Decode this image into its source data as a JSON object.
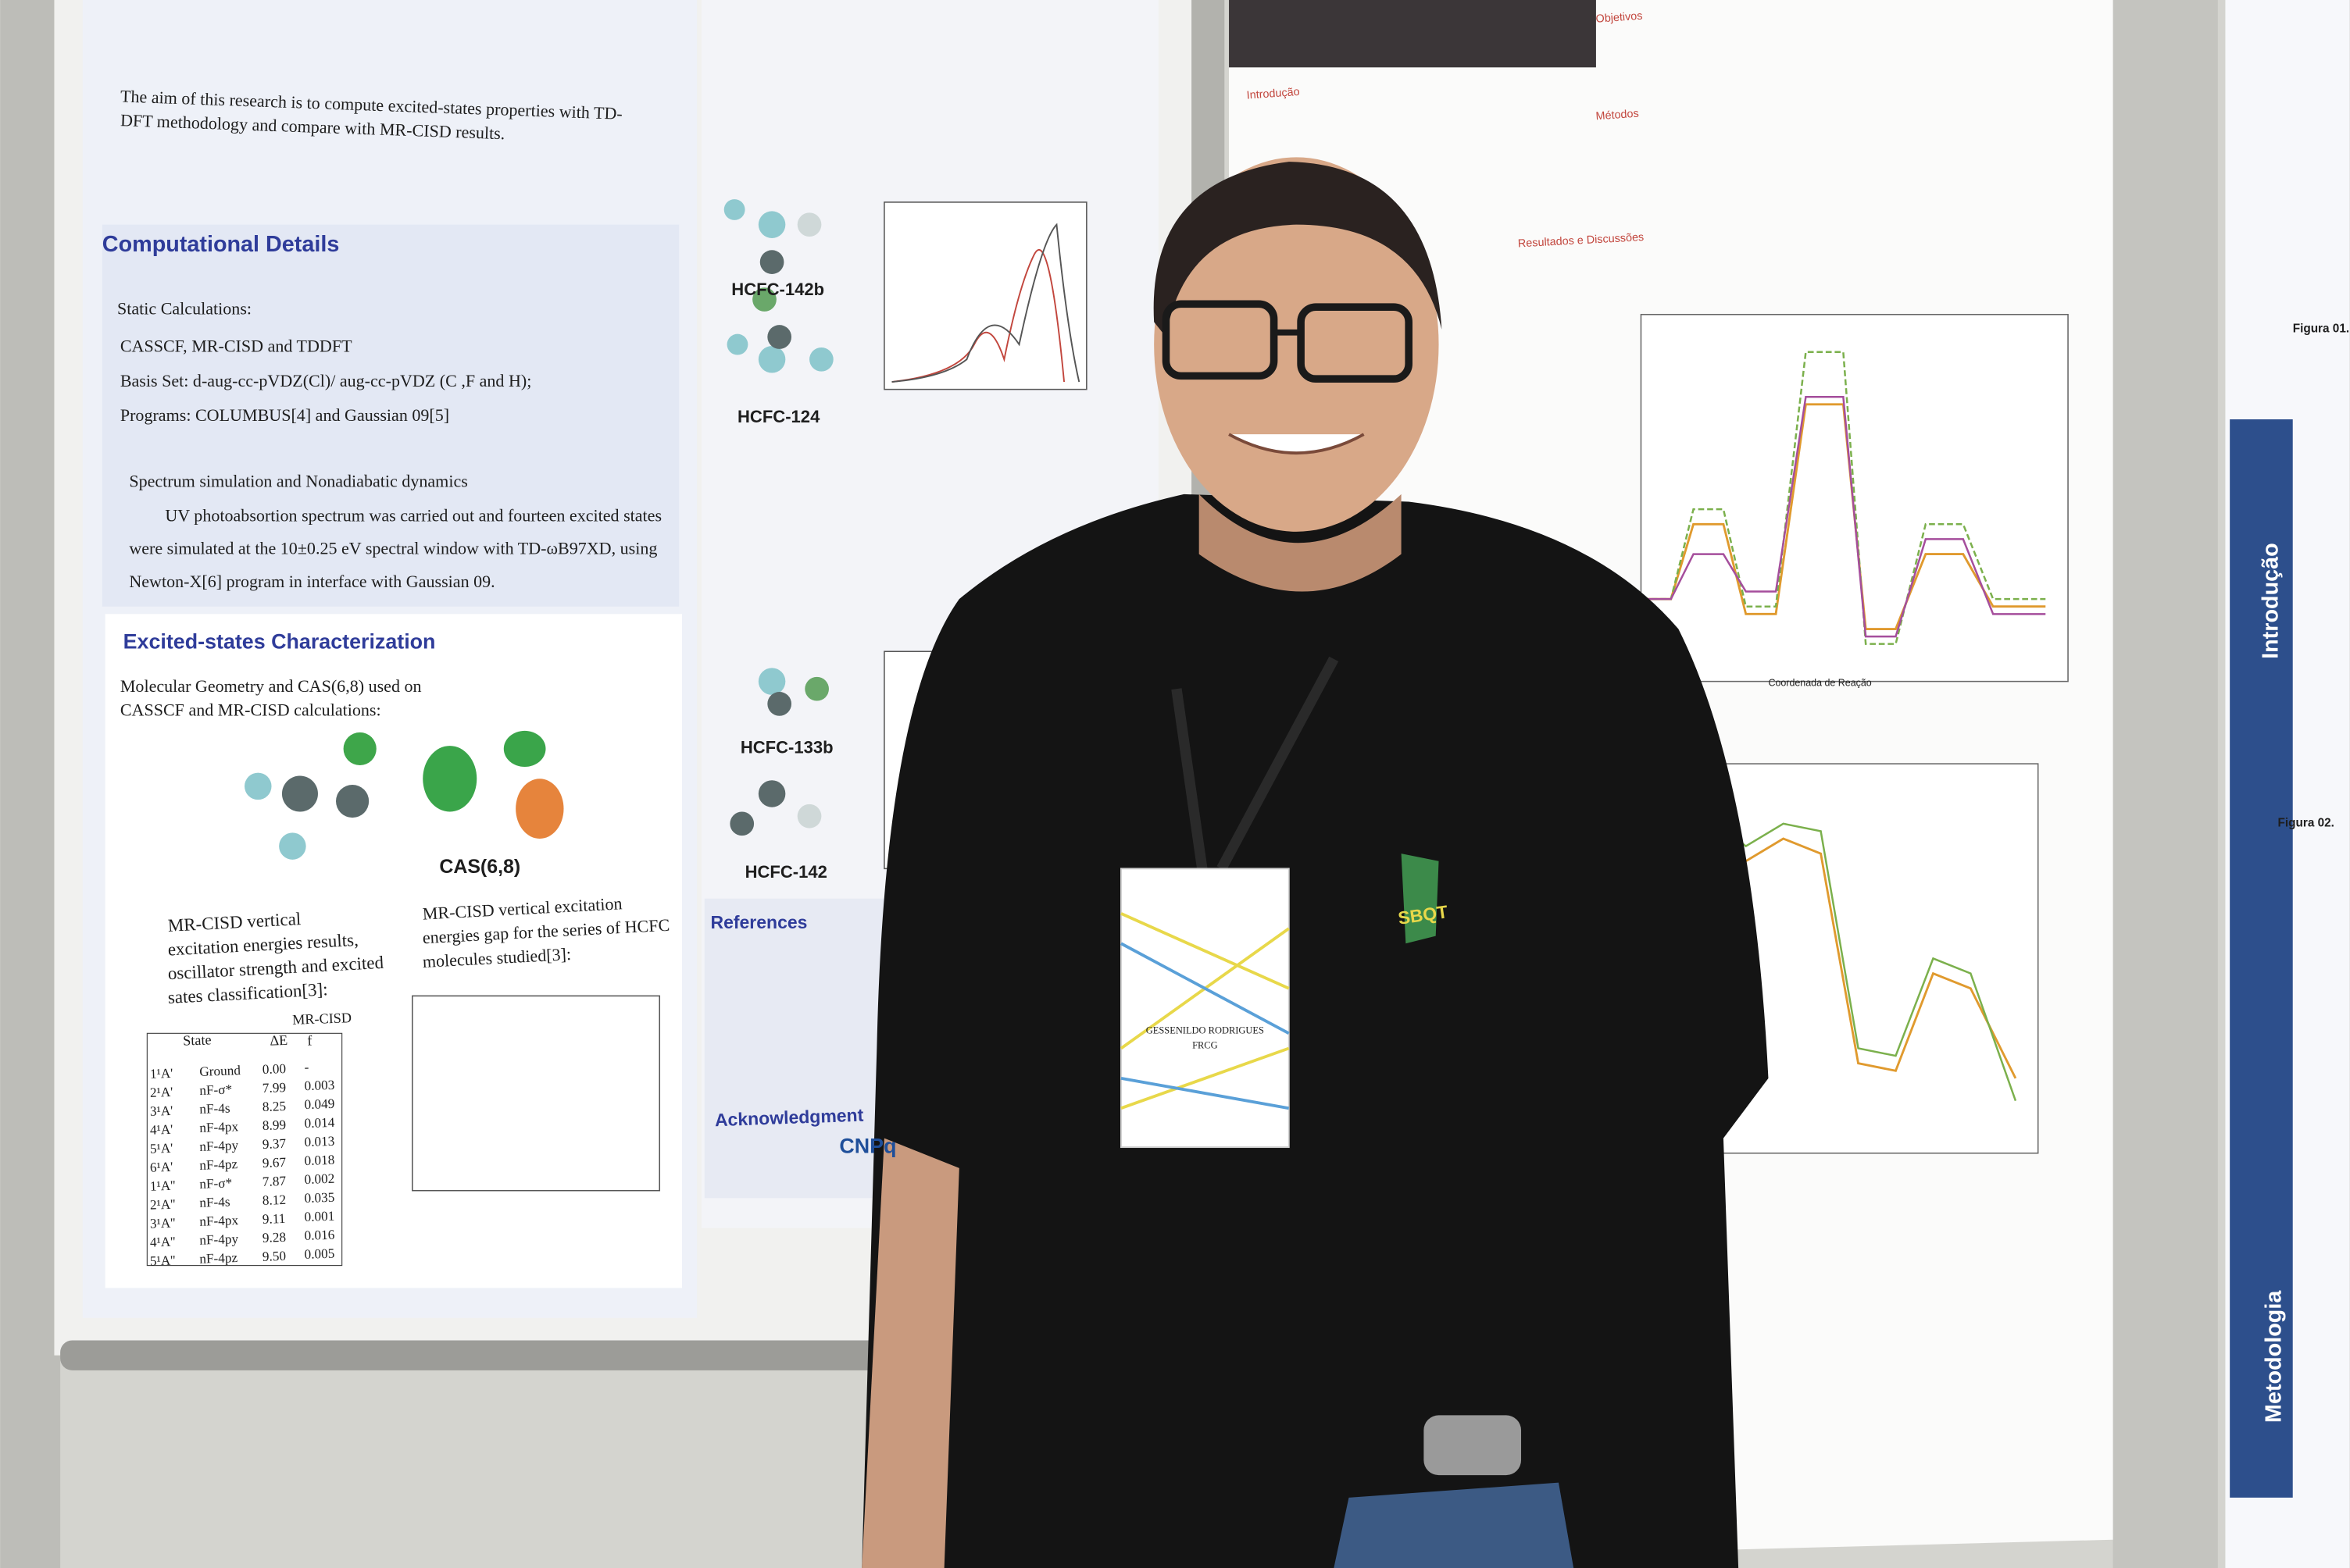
{
  "left_poster": {
    "intro": [
      "The aim of this research is to compute excited-states properties with TD-",
      "DFT methodology and compare with MR-CISD results."
    ],
    "computational_details": {
      "title": "Computational Details",
      "items": [
        "Static Calculations:",
        "CASSCF, MR-CISD and TDDFT",
        "Basis Set: d-aug-cc-pVDZ(Cl)/ aug-cc-pVDZ (C ,F and H);",
        "Programs: COLUMBUS[4] and Gaussian 09[5]",
        "Spectrum simulation and Nonadiabatic dynamics",
        "UV photoabsortion spectrum was carried out and fourteen excited states",
        "were simulated at the 10±0.25 eV spectral window with TD-ωB97XD, using",
        "Newton-X[6] program in interface with Gaussian 09."
      ]
    },
    "excited_states": {
      "title": "Excited-states Characterization",
      "lines": [
        "Molecular Geometry and CAS(6,8) used on",
        "CASSCF and MR-CISD calculations:"
      ],
      "cas": "CAS(6,8)",
      "table_caption": [
        "MR-CISD vertical",
        "excitation energies results,",
        "oscillator strength and excited",
        "sates classification[3]:"
      ],
      "gap_caption": [
        "MR-CISD vertical excitation",
        "energies gap for the series of HCFC",
        "molecules studied[3]:"
      ],
      "table": {
        "header": [
          "State",
          "MR-CISD",
          "ΔE",
          "f"
        ],
        "rows": [
          [
            "1¹A'",
            "Ground",
            "0.00",
            "-"
          ],
          [
            "2¹A'",
            "nF-σ*",
            "7.99",
            "0.003"
          ],
          [
            "3¹A'",
            "nF-4s",
            "8.25",
            "0.049"
          ],
          [
            "4¹A'",
            "nF-4px",
            "8.99",
            "0.014"
          ],
          [
            "5¹A'",
            "nF-4py",
            "9.37",
            "0.013"
          ],
          [
            "6¹A'",
            "nF-4pz",
            "9.67",
            "0.018"
          ],
          [
            "1¹A''",
            "nF-σ*",
            "7.87",
            "0.002"
          ],
          [
            "2¹A''",
            "nF-4s",
            "8.12",
            "0.035"
          ],
          [
            "3¹A''",
            "nF-4px",
            "9.11",
            "0.001"
          ],
          [
            "4¹A''",
            "nF-4py",
            "9.28",
            "0.016"
          ],
          [
            "5¹A''",
            "nF-4pz",
            "9.50",
            "0.005"
          ]
        ]
      }
    },
    "molecules": [
      "HCFC-142b",
      "HCFC-124",
      "HCFC-133b",
      "HCFC-142"
    ],
    "references_title": "References",
    "acknowledgment": "Acknowledgment",
    "sponsor": "CNPq"
  },
  "right_poster": {
    "headings": [
      "Objetivos",
      "Introdução",
      "Métodos",
      "Resultados e Discussões"
    ],
    "axis_label": "Coordenada de Reação"
  },
  "far_right_poster": {
    "headings": [
      "Introdução",
      "Metodologia"
    ],
    "figures": [
      "Figura 01.",
      "Figura 02."
    ]
  },
  "badge": {
    "name": "GESSENILDO RODRIGUES",
    "institution": "FRCG"
  },
  "shirt_logo": "SBQT"
}
